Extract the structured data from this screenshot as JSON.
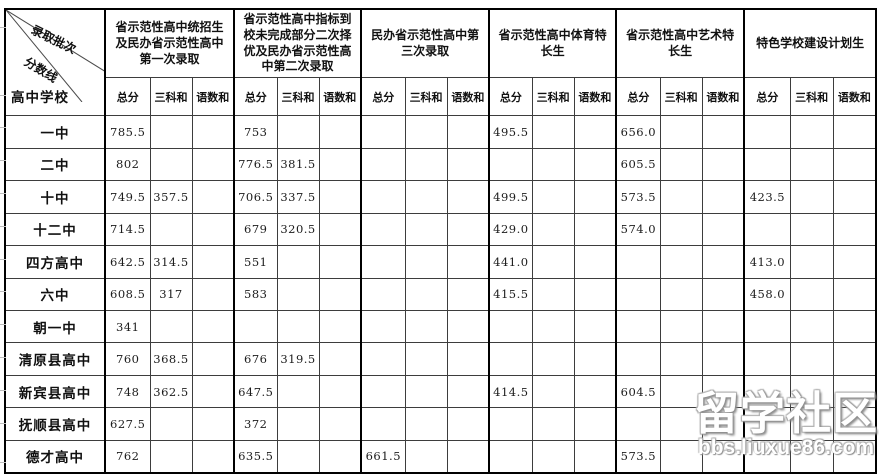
{
  "corner": {
    "top_label": "录取批次",
    "middle_label": "分数线",
    "bottom_label": "高中学校"
  },
  "column_groups": [
    {
      "label": "省示范性高中统招生及民办省示范性高中第一次录取",
      "sub": [
        "总分",
        "三科和",
        "语数和"
      ]
    },
    {
      "label": "省示范性高中指标到校未完成部分二次择优及民办省示范性高中第二次录取",
      "sub": [
        "总分",
        "三科和",
        "语数和"
      ]
    },
    {
      "label": "民办省示范性高中第三次录取",
      "sub": [
        "总分",
        "三科和",
        "语数和"
      ]
    },
    {
      "label": "省示范性高中体育特长生",
      "sub": [
        "总分",
        "三科和",
        "语数和"
      ]
    },
    {
      "label": "省示范性高中艺术特长生",
      "sub": [
        "总分",
        "三科和",
        "语数和"
      ]
    },
    {
      "label": "特色学校建设计划生",
      "sub": [
        "总分",
        "三科和",
        "语数和"
      ]
    }
  ],
  "rows": [
    {
      "school": "一中",
      "values": [
        "785.5",
        "",
        "",
        "753",
        "",
        "",
        "",
        "",
        "",
        "495.5",
        "",
        "",
        "656.0",
        "",
        "",
        "",
        "",
        ""
      ]
    },
    {
      "school": "二中",
      "values": [
        "802",
        "",
        "",
        "776.5",
        "381.5",
        "",
        "",
        "",
        "",
        "",
        "",
        "",
        "605.5",
        "",
        "",
        "",
        "",
        ""
      ]
    },
    {
      "school": "十中",
      "values": [
        "749.5",
        "357.5",
        "",
        "706.5",
        "337.5",
        "",
        "",
        "",
        "",
        "499.5",
        "",
        "",
        "573.5",
        "",
        "",
        "423.5",
        "",
        ""
      ]
    },
    {
      "school": "十二中",
      "values": [
        "714.5",
        "",
        "",
        "679",
        "320.5",
        "",
        "",
        "",
        "",
        "429.0",
        "",
        "",
        "574.0",
        "",
        "",
        "",
        "",
        ""
      ]
    },
    {
      "school": "四方高中",
      "values": [
        "642.5",
        "314.5",
        "",
        "551",
        "",
        "",
        "",
        "",
        "",
        "441.0",
        "",
        "",
        "",
        "",
        "",
        "413.0",
        "",
        ""
      ]
    },
    {
      "school": "六中",
      "values": [
        "608.5",
        "317",
        "",
        "583",
        "",
        "",
        "",
        "",
        "",
        "415.5",
        "",
        "",
        "",
        "",
        "",
        "458.0",
        "",
        ""
      ]
    },
    {
      "school": "朝一中",
      "values": [
        "341",
        "",
        "",
        "",
        "",
        "",
        "",
        "",
        "",
        "",
        "",
        "",
        "",
        "",
        "",
        "",
        "",
        ""
      ]
    },
    {
      "school": "清原县高中",
      "values": [
        "760",
        "368.5",
        "",
        "676",
        "319.5",
        "",
        "",
        "",
        "",
        "",
        "",
        "",
        "",
        "",
        "",
        "",
        "",
        ""
      ]
    },
    {
      "school": "新宾县高中",
      "values": [
        "748",
        "362.5",
        "",
        "647.5",
        "",
        "",
        "",
        "",
        "",
        "414.5",
        "",
        "",
        "604.5",
        "",
        "",
        "",
        "",
        ""
      ]
    },
    {
      "school": "抚顺县高中",
      "values": [
        "627.5",
        "",
        "",
        "372",
        "",
        "",
        "",
        "",
        "",
        "",
        "",
        "",
        "",
        "",
        "",
        "",
        "",
        ""
      ]
    },
    {
      "school": "德才高中",
      "values": [
        "762",
        "",
        "",
        "635.5",
        "",
        "",
        "661.5",
        "",
        "",
        "",
        "",
        "",
        "573.5",
        "",
        "",
        "",
        "",
        ""
      ]
    }
  ],
  "watermark": {
    "title": "留学社区",
    "url": "bbs.liuxue86.com"
  }
}
